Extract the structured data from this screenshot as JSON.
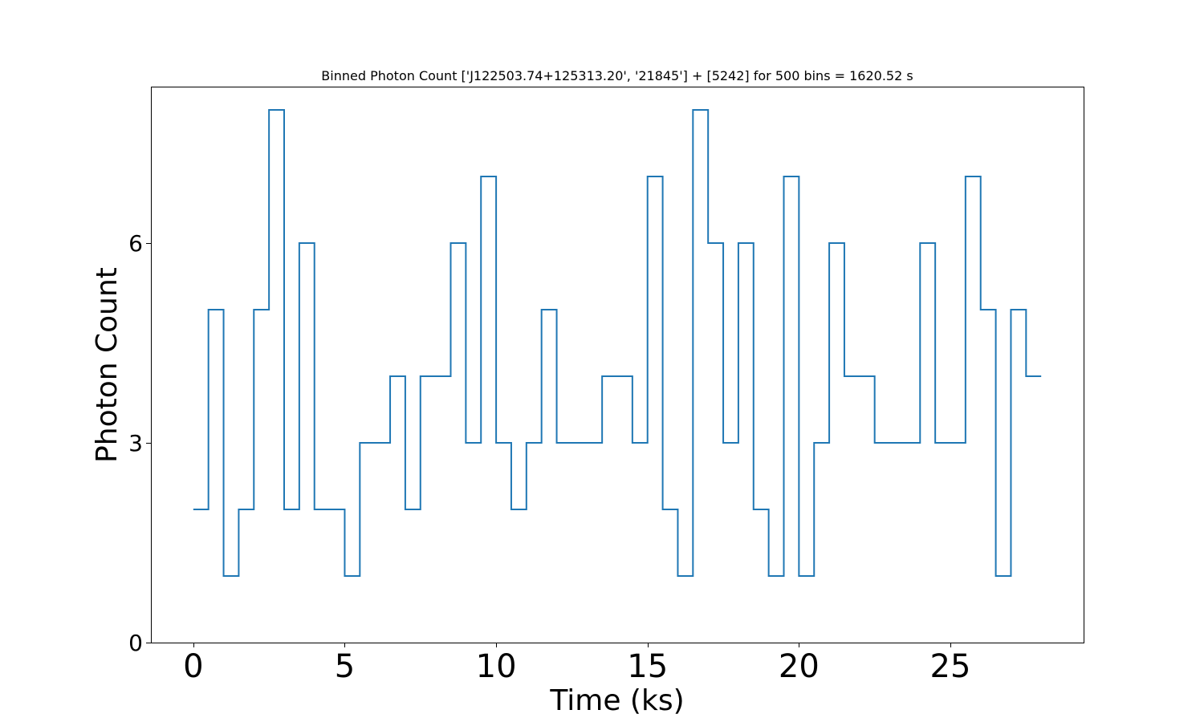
{
  "chart_data": {
    "type": "line",
    "title": "Binned Photon Count ['J122503.74+125313.20', '21845'] + [5242] for 500 bins = 1620.52 s",
    "xlabel": "Time (ks)",
    "ylabel": "Photon Count",
    "xlim": [
      -1.4,
      29.4
    ],
    "ylim": [
      0,
      8.35
    ],
    "x_ticks": [
      0,
      5,
      10,
      15,
      20,
      25
    ],
    "x_tick_labels": [
      "0",
      "5",
      "10",
      "15",
      "20",
      "25"
    ],
    "y_ticks": [
      0,
      3,
      6
    ],
    "y_tick_labels": [
      "0",
      "3",
      "6"
    ],
    "grid": false,
    "legend": "none",
    "step_where": "post",
    "series": [
      {
        "color": "#1f77b4",
        "x": [
          0,
          0.5,
          1.0,
          1.5,
          2.0,
          2.5,
          3.0,
          3.5,
          4.0,
          4.5,
          5.0,
          5.5,
          6.0,
          6.5,
          7.0,
          7.5,
          8.0,
          8.5,
          9.0,
          9.5,
          10.0,
          10.5,
          11.0,
          11.5,
          12.0,
          12.5,
          13.0,
          13.5,
          14.0,
          14.5,
          15.0,
          15.5,
          16.0,
          16.5,
          17.0,
          17.5,
          18.0,
          18.5,
          19.0,
          19.5,
          20.0,
          20.5,
          21.0,
          21.5,
          22.0,
          22.5,
          23.0,
          23.5,
          24.0,
          24.5,
          25.0,
          25.5,
          26.0,
          26.5,
          27.0,
          27.5,
          28.0
        ],
        "y": [
          2,
          5,
          1,
          2,
          5,
          8,
          2,
          6,
          2,
          2,
          1,
          3,
          3,
          4,
          2,
          4,
          4,
          6,
          3,
          7,
          3,
          2,
          3,
          5,
          3,
          3,
          3,
          4,
          4,
          3,
          7,
          2,
          1,
          8,
          6,
          3,
          6,
          2,
          1,
          7,
          1,
          3,
          6,
          4,
          4,
          3,
          3,
          3,
          6,
          3,
          3,
          7,
          5,
          1,
          5,
          4,
          4
        ]
      }
    ]
  }
}
